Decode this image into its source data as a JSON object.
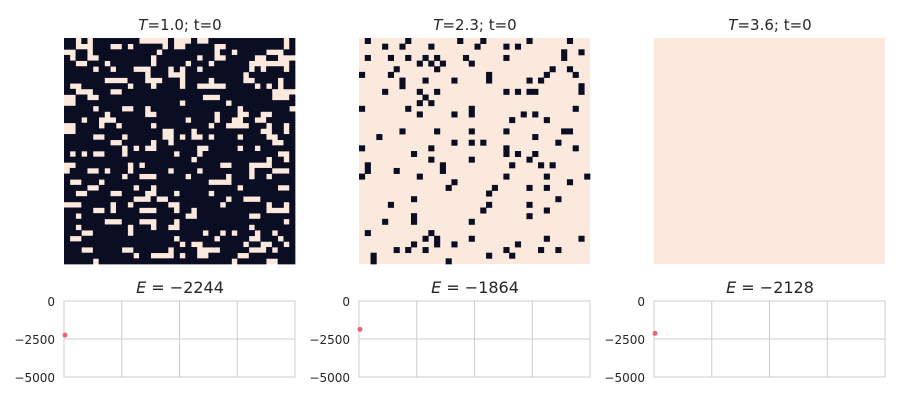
{
  "colors": {
    "up": "#0b0d23",
    "down": "#fbe9dd",
    "grid": "#cccccc",
    "axis": "#cccccc",
    "text": "#262626",
    "energy_marker": "#e8647a"
  },
  "chart_data": [
    {
      "type": "heatmap",
      "title_var": "T",
      "title_rest": "=1.0; t=0",
      "grid_size": 40,
      "rows": [
        "1101011111111000001000100111111111111101",
        "1100011100101111101001111100111111111101",
        "0011011111111111011111111101101111100011",
        "1011001111111110111111101100111110011000",
        "1100111011111110111110111011111100000001",
        "1111101101110001110101101111111101011101",
        "1111111111111101110001111111111011111111",
        "1111111000011100011101111011111001111011",
        "1001111111101110111101100000111110101011",
        "1100011100111111111111111111111111110000",
        "0011001111111111111111110001111111110001",
        "0011111111111111111101111111011111111111",
        "1111101111001101111111111111110111111110",
        "1111111011111100111111111101110011001111",
        "1110110001111111111110111101100110011111",
        "0011110110111110111111111011000011101101",
        "0011111111111111100111011111111111001101",
        "1111100111011111100101001011110111100111",
        "1111111100111110110111111111111111110011",
        "1111111111010100111111100111110110111111",
        "1010100111011111111011101111111111111001",
        "1111111111111111111111011111111111101101",
        "0011111111101011111111111110011100001111",
        "0111001011101111110111101111111101110001",
        "1111111111011000111110111111011101101111",
        "1001110111111111111111111000011111111111",
        "1111001111110110111111111111110111111001",
        "1100111100111100111011111011111111111111",
        "1111111111110001001111111111011000111111",
        "0001111101101111110011111110111111101101",
        "1111100101111000111011011111111111100001",
        "1101111111111111111110011111111100111111",
        "1111111000111000111011111111111111111101",
        "1101111111101110110011111111111101111111",
        "1110011111101111111111110110101110110111",
        "1001111111111111111011111101111100111011",
        "1111111111111111111101001111111011001101",
        "1110011111001111110111100001111100010111",
        "1111111111110110000101100111110011111111",
        "1111101111111111111111111111101111100111"
      ]
    },
    {
      "type": "heatmap",
      "title_var": "T",
      "title_rest": "=2.3; t=0",
      "grid_size": 40,
      "rows": [
        "0100000010000000010001000000010000001000",
        "0000100100001000000010000101000000000000",
        "0000000000000000000000000000000000010010",
        "0100010010010100001000000100000000010000",
        "0000000000101010000100000000000000000000",
        "0000001000000100000000000000000001001000",
        "1000010000000000000000100000000010000100",
        "0000000100010000100000100000010100000000",
        "0000000100000000000000000000000000000010",
        "0000100000100100000000000101011000000010",
        "0000000000010000000000000000000000000000",
        "0000000000101000000000000000000000000000",
        "1000000010000000000100000000000000000100",
        "0000000000100000100100000000101000000000",
        "0000000000000000000000000010000010000000",
        "0000000000000000000000000000000000000000",
        "0000000100000100000100000100000000011000",
        "0001000000000000000000000000001000000000",
        "0000000000000000100101000000000000100000",
        "1000000000001000000000000100000000000100",
        "0000000001000000000000000101001000000000",
        "0000000000001000000100000000010000000000",
        "0100000000000010000000000010000101000000",
        "0100001000000010000000000000000000000000",
        "1000000000100000000000000100000010000001",
        "0000000000000000100000000000000000001000",
        "0000000000000001000000010000010010000000",
        "0000000000000000000000100000000000000000",
        "0000000001000000000000000000000000100000",
        "0000010000000000000000100000010000000000",
        "0000000000000000000001000000000010000000",
        "0000000001000000000000000000010000000000",
        "0000100001000000000100000000000000000000",
        "0000000000000000000000000000000000000000",
        "0100000000001000000000000000000000000000",
        "0000000000010100000100000000000010000010",
        "0000000001000100100000000001000000000000",
        "0000001010010000000000000100000100100000",
        "0010000000000000000000100010000000000000",
        "0010000000000001000000000000000000000000"
      ]
    },
    {
      "type": "heatmap",
      "title_var": "T",
      "title_rest": "=3.6; t=0",
      "grid_size": 40,
      "rows": [
        "0000000000000000000000000000000000000000",
        "0000000000000000000000000000000000000000",
        "0000000000000000000000000000000000000000",
        "0000000000000000000000000000000000000000",
        "0000000000000000000000000000000000000000",
        "0000000000000000000000000000000000000000",
        "0000000000000000000000000000000000000000",
        "0000000000000000000000000000000000000000",
        "0000000000000000000000000000000000000000",
        "0000000000000000000000000000000000000000",
        "0000000000000000000000000000000000000000",
        "0000000000000000000000000000000000000000",
        "0000000000000000000000000000000000000000",
        "0000000000000000000000000000000000000000",
        "0000000000000000000000000000000000000000",
        "0000000000000000000000000000000000000000",
        "0000000000000000000000000000000000000000",
        "0000000000000000000000000000000000000000",
        "0000000000000000000000000000000000000000",
        "0000000000000000000000000000000000000000",
        "0000000000000000000000000000000000000000",
        "0000000000000000000000000000000000000000",
        "0000000000000000000000000000000000000000",
        "0000000000000000000000000000000000000000",
        "0000000000000000000000000000000000000000",
        "0000000000000000000000000000000000000000",
        "0000000000000000000000000000000000000000",
        "0000000000000000000000000000000000000000",
        "0000000000000000000000000000000000000000",
        "0000000000000000000000000000000000000000",
        "0000000000000000000000000000000000000000",
        "0000000000000000000000000000000000000000",
        "0000000000000000000000000000000000000000",
        "0000000000000000000000000000000000000000",
        "0000000000000000000000000000000000000000",
        "0000000000000000000000000000000000000000",
        "0000000000000000000000000000000000000000",
        "0000000000000000000000000000000000000000",
        "0000000000000000000000000000000000000000",
        "0000000000000000000000000000000000000000"
      ]
    },
    {
      "type": "line",
      "title_var": "E",
      "title_rest": " = −2244",
      "ylim": [
        -5000,
        0
      ],
      "yticks": [
        0,
        -2500,
        -5000
      ],
      "ytick_labels": [
        "0",
        "−2500",
        "−5000"
      ],
      "x": [
        0
      ],
      "values": [
        -2244
      ],
      "grid": true
    },
    {
      "type": "line",
      "title_var": "E",
      "title_rest": " = −1864",
      "ylim": [
        -5000,
        0
      ],
      "yticks": [
        0,
        -2500,
        -5000
      ],
      "ytick_labels": [
        "0",
        "−2500",
        "−5000"
      ],
      "x": [
        0
      ],
      "values": [
        -1864
      ],
      "grid": true
    },
    {
      "type": "line",
      "title_var": "E",
      "title_rest": " = −2128",
      "ylim": [
        -5000,
        0
      ],
      "yticks": [
        0,
        -2500,
        -5000
      ],
      "ytick_labels": [
        "0",
        "−2500",
        "−5000"
      ],
      "x": [
        0
      ],
      "values": [
        -2128
      ],
      "grid": true
    }
  ]
}
